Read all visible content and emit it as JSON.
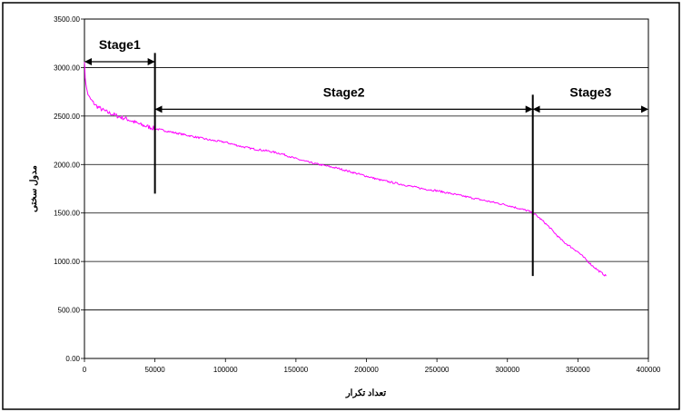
{
  "chart_data": {
    "type": "line",
    "xlabel": "تعداد تکرار",
    "ylabel": "مدول سختی",
    "xlim": [
      0,
      400000
    ],
    "ylim": [
      0,
      3500
    ],
    "x_ticks": [
      "0",
      "50000",
      "100000",
      "150000",
      "200000",
      "250000",
      "300000",
      "350000",
      "400000"
    ],
    "y_ticks": [
      "0.00",
      "500.00",
      "1000.00",
      "1500.00",
      "2000.00",
      "2500.00",
      "3000.00",
      "3500.00"
    ],
    "grid": "horizontal",
    "series": [
      {
        "color": "#ff00ff",
        "x": [
          0,
          500,
          1500,
          3000,
          5000,
          8000,
          12000,
          16000,
          20000,
          25000,
          30000,
          35000,
          40000,
          45000,
          50000,
          60000,
          70000,
          80000,
          90000,
          100000,
          110000,
          120000,
          130000,
          140000,
          150000,
          160000,
          170000,
          180000,
          190000,
          200000,
          210000,
          220000,
          230000,
          240000,
          250000,
          260000,
          270000,
          280000,
          290000,
          300000,
          305000,
          310000,
          315000,
          320000,
          325000,
          330000,
          335000,
          340000,
          345000,
          350000,
          355000,
          360000,
          365000,
          370000
        ],
        "y": [
          3080,
          2900,
          2780,
          2700,
          2660,
          2610,
          2570,
          2540,
          2520,
          2490,
          2470,
          2440,
          2410,
          2390,
          2370,
          2340,
          2310,
          2280,
          2250,
          2230,
          2190,
          2160,
          2140,
          2110,
          2060,
          2020,
          1990,
          1960,
          1920,
          1880,
          1840,
          1810,
          1780,
          1750,
          1730,
          1700,
          1670,
          1640,
          1610,
          1580,
          1560,
          1540,
          1520,
          1480,
          1420,
          1350,
          1270,
          1200,
          1150,
          1100,
          1030,
          960,
          900,
          850
        ]
      }
    ],
    "annotations": [
      {
        "label": "Stage1",
        "x_from": 0,
        "x_to": 50000,
        "y": 3060
      },
      {
        "label": "Stage2",
        "x_from": 50000,
        "x_to": 318000,
        "y": 2570
      },
      {
        "label": "Stage3",
        "x_from": 318000,
        "x_to": 400000,
        "y": 2570
      }
    ],
    "markers": [
      {
        "x": 50000,
        "y_from": 1700,
        "y_to": 3150
      },
      {
        "x": 318000,
        "y_from": 850,
        "y_to": 2720
      }
    ]
  }
}
